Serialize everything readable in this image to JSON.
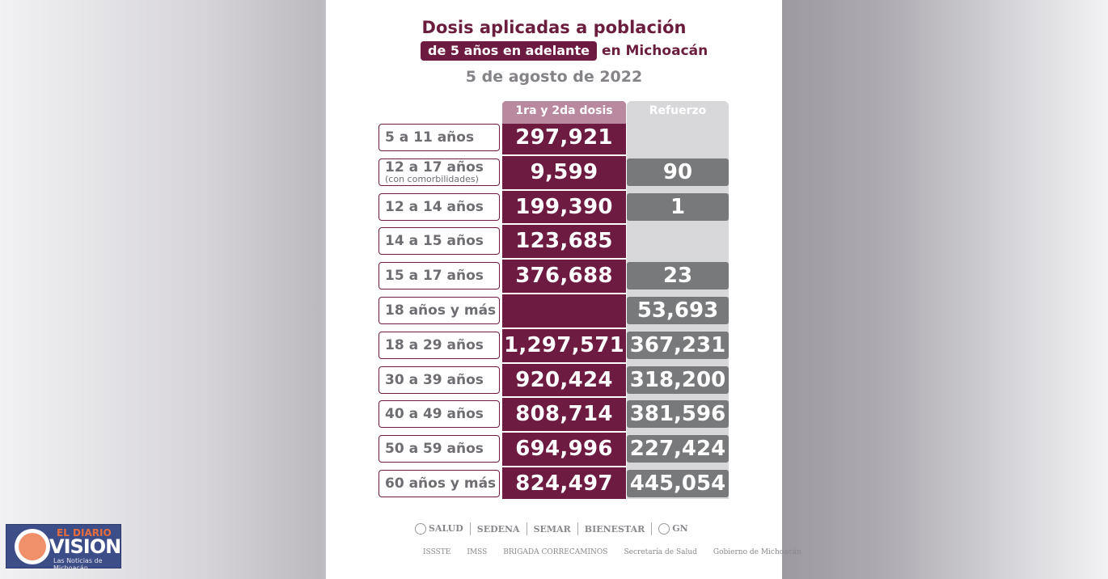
{
  "header": {
    "title_line1": "Dosis aplicadas a población",
    "title_pill": "de 5 años en adelante",
    "title_rest": "en Michoacán",
    "date": "5 de agosto de 2022"
  },
  "table": {
    "col1_header": "1ra y 2da dosis",
    "col2_header": "Refuerzo",
    "rows": [
      {
        "label": "5 a 11 años",
        "sub": "",
        "dose12": "297,921",
        "booster": ""
      },
      {
        "label": "12 a 17 años",
        "sub": "(con comorbilidades)",
        "dose12": "9,599",
        "booster": "90"
      },
      {
        "label": "12 a 14 años",
        "sub": "",
        "dose12": "199,390",
        "booster": "1"
      },
      {
        "label": "14 a 15 años",
        "sub": "",
        "dose12": "123,685",
        "booster": ""
      },
      {
        "label": "15 a 17 años",
        "sub": "",
        "dose12": "376,688",
        "booster": "23"
      },
      {
        "label": "18 años y más",
        "sub": "",
        "dose12": "",
        "booster": "53,693"
      },
      {
        "label": "18 a 29 años",
        "sub": "",
        "dose12": "1,297,571",
        "booster": "367,231"
      },
      {
        "label": "30 a 39 años",
        "sub": "",
        "dose12": "920,424",
        "booster": "318,200"
      },
      {
        "label": "40 a 49 años",
        "sub": "",
        "dose12": "808,714",
        "booster": "381,596"
      },
      {
        "label": "50 a 59 años",
        "sub": "",
        "dose12": "694,996",
        "booster": "227,424"
      },
      {
        "label": "60 años y más",
        "sub": "",
        "dose12": "824,497",
        "booster": "445,054"
      }
    ]
  },
  "footer_logos": {
    "row1": [
      "SALUD",
      "SEDENA",
      "SEMAR",
      "BIENESTAR",
      "GN"
    ],
    "row2": [
      "ISSSTE",
      "IMSS",
      "BRIGADA CORRECAMINOS",
      "Secretaría de Salud",
      "Gobierno de Michoacán"
    ]
  },
  "watermark": {
    "top": "EL DIARIO",
    "name": "VISION",
    "tagline": "Las Noticias de Michoacán"
  },
  "colors": {
    "maroon": "#6e1b41",
    "gray": "#78797b",
    "light_gray": "#d8d8da"
  }
}
